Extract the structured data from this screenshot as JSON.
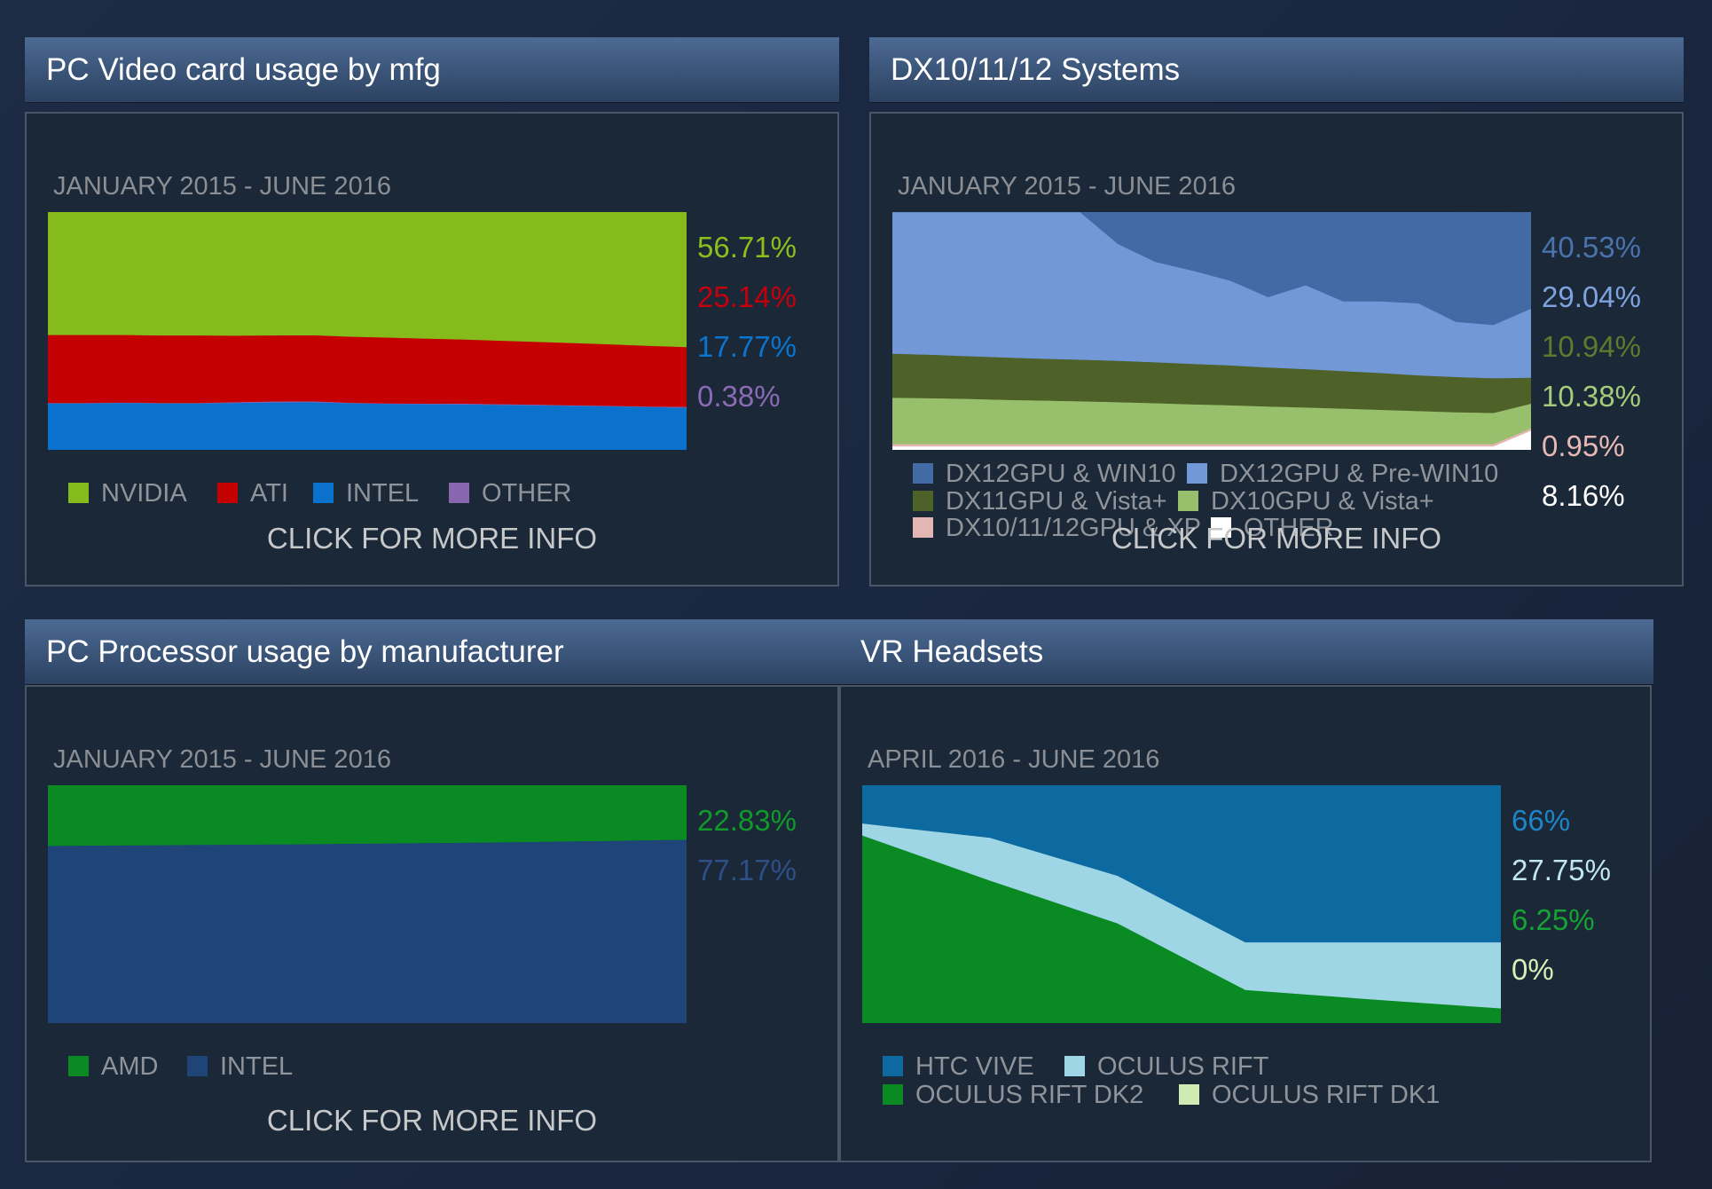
{
  "panels": {
    "gpu": {
      "title": "PC Video card usage by mfg",
      "date_range": "JANUARY 2015 - JUNE 2016",
      "percentages": [
        {
          "label": "56.71%",
          "color": "#8cbf1e"
        },
        {
          "label": "25.14%",
          "color": "#c5000c"
        },
        {
          "label": "17.77%",
          "color": "#0a74cf"
        },
        {
          "label": "0.38%",
          "color": "#8b6bb5"
        }
      ],
      "legend": [
        {
          "label": "NVIDIA",
          "color": "#85bb1a"
        },
        {
          "label": "ATI",
          "color": "#c40000"
        },
        {
          "label": "INTEL",
          "color": "#0a72cc"
        },
        {
          "label": "OTHER",
          "color": "#8967b0"
        }
      ],
      "more_info": "CLICK FOR MORE INFO"
    },
    "dx": {
      "title": "DX10/11/12 Systems",
      "date_range": "JANUARY 2015 - JUNE 2016",
      "percentages": [
        {
          "label": "40.53%",
          "color": "#4a73ad"
        },
        {
          "label": "29.04%",
          "color": "#7ea3de"
        },
        {
          "label": "10.94%",
          "color": "#5e7a2e"
        },
        {
          "label": "10.38%",
          "color": "#a4cc7a"
        },
        {
          "label": "0.95%",
          "color": "#e8b8b4"
        },
        {
          "label": "8.16%",
          "color": "#ffffff"
        }
      ],
      "legend": [
        {
          "label": "DX12GPU & WIN10",
          "color": "#426aa4"
        },
        {
          "label": "DX12GPU & Pre-WIN10",
          "color": "#7398d8"
        },
        {
          "label": "DX11GPU & Vista+",
          "color": "#4e6128"
        },
        {
          "label": "DX10GPU & Vista+",
          "color": "#98bf6c"
        },
        {
          "label": "DX10/11/12GPU & XP",
          "color": "#e2b6b2"
        },
        {
          "label": "OTHER",
          "color": "#ffffff"
        }
      ],
      "more_info": "CLICK FOR MORE INFO"
    },
    "cpu": {
      "title": "PC Processor usage by manufacturer",
      "date_range": "JANUARY 2015 - JUNE 2016",
      "percentages": [
        {
          "label": "22.83%",
          "color": "#0f9a2a"
        },
        {
          "label": "77.17%",
          "color": "#2d5089"
        }
      ],
      "legend": [
        {
          "label": "AMD",
          "color": "#0a8a22"
        },
        {
          "label": "INTEL",
          "color": "#1f4478"
        }
      ],
      "more_info": "CLICK FOR MORE INFO"
    },
    "vr": {
      "title": "VR Headsets",
      "date_range": "APRIL 2016 - JUNE 2016",
      "percentages": [
        {
          "label": "66%",
          "color": "#1c86c9"
        },
        {
          "label": "27.75%",
          "color": "#bfe6f2"
        },
        {
          "label": "6.25%",
          "color": "#15a333"
        },
        {
          "label": "0%",
          "color": "#d7f0b8"
        }
      ],
      "legend": [
        {
          "label": "HTC VIVE",
          "color": "#0d6aa0"
        },
        {
          "label": "OCULUS RIFT",
          "color": "#9fd6e6"
        },
        {
          "label": "OCULUS RIFT DK2",
          "color": "#0a8a22"
        },
        {
          "label": "OCULUS RIFT DK1",
          "color": "#cfeab2"
        }
      ],
      "more_info": ""
    }
  },
  "chart_data": [
    {
      "type": "area",
      "stacked": true,
      "title": "PC Video card usage by mfg",
      "x": [
        0,
        1,
        2,
        3,
        4,
        5,
        6,
        7,
        8,
        9,
        10,
        11,
        12,
        13,
        14,
        15,
        16,
        17
      ],
      "ylim": [
        0,
        100
      ],
      "series": [
        {
          "name": "INTEL",
          "color": "#0a72cc",
          "values": [
            19.6,
            19.6,
            19.8,
            19.6,
            19.6,
            19.8,
            20.0,
            20.1,
            19.7,
            19.4,
            19.3,
            19.2,
            19.0,
            18.8,
            18.6,
            18.4,
            18.1,
            17.77
          ]
        },
        {
          "name": "OTHER",
          "color": "#8967b0",
          "values": [
            0.2,
            0.2,
            0.2,
            0.2,
            0.2,
            0.3,
            0.4,
            0.4,
            0.2,
            0.2,
            0.2,
            0.3,
            0.3,
            0.3,
            0.2,
            0.2,
            0.2,
            0.38
          ]
        },
        {
          "name": "ATI",
          "color": "#c40000",
          "values": [
            28.6,
            28.6,
            28.4,
            28.4,
            28.4,
            28.0,
            27.8,
            27.8,
            27.8,
            27.7,
            27.4,
            27.0,
            26.7,
            26.4,
            26.2,
            25.8,
            25.5,
            25.14
          ]
        },
        {
          "name": "NVIDIA",
          "color": "#85bb1a",
          "values": [
            51.6,
            51.6,
            51.6,
            51.8,
            51.8,
            51.9,
            51.8,
            51.7,
            52.3,
            52.7,
            53.1,
            53.5,
            54.0,
            54.5,
            55.0,
            55.6,
            56.2,
            56.71
          ]
        }
      ]
    },
    {
      "type": "area",
      "stacked": true,
      "title": "DX10/11/12 Systems",
      "x": [
        0,
        1,
        2,
        3,
        4,
        5,
        6,
        7,
        8,
        9,
        10,
        11,
        12,
        13,
        14,
        15,
        16,
        17
      ],
      "ylim": [
        0,
        100
      ],
      "series": [
        {
          "name": "OTHER",
          "color": "#ffffff",
          "values": [
            1.5,
            1.5,
            1.5,
            1.5,
            1.5,
            1.5,
            1.5,
            1.5,
            1.5,
            1.5,
            1.5,
            1.5,
            1.5,
            1.5,
            1.5,
            1.5,
            1.5,
            8.16
          ]
        },
        {
          "name": "DX10/11/12GPU & XP",
          "color": "#e2b6b2",
          "values": [
            1.0,
            1.0,
            1.0,
            1.0,
            1.0,
            1.0,
            1.0,
            1.0,
            1.0,
            1.0,
            1.0,
            1.0,
            1.0,
            1.0,
            1.0,
            1.0,
            1.0,
            0.95
          ]
        },
        {
          "name": "DX10GPU & Vista+",
          "color": "#98bf6c",
          "values": [
            19.5,
            19.3,
            19.0,
            18.6,
            18.3,
            18.0,
            17.6,
            17.2,
            16.7,
            16.3,
            15.8,
            15.4,
            14.9,
            14.4,
            13.9,
            13.4,
            13.1,
            10.38
          ]
        },
        {
          "name": "DX11GPU & Vista+",
          "color": "#4e6128",
          "values": [
            18.5,
            18.3,
            18.0,
            17.8,
            17.6,
            17.5,
            17.4,
            17.2,
            17.0,
            16.8,
            16.4,
            16.1,
            15.8,
            15.5,
            15.0,
            14.8,
            14.6,
            10.94
          ]
        },
        {
          "name": "DX12GPU & Pre-WIN10",
          "color": "#7398d8",
          "values": [
            59.5,
            59.9,
            60.5,
            61.1,
            61.6,
            62.0,
            49.2,
            42.2,
            39.2,
            35.6,
            29.6,
            35.3,
            29.3,
            30.1,
            30.3,
            23.2,
            22.4,
            29.04
          ]
        },
        {
          "name": "DX12GPU & WIN10",
          "color": "#426aa4",
          "values": [
            0,
            0,
            0,
            0,
            0,
            0,
            13.3,
            20.9,
            24.6,
            28.8,
            35.7,
            30.7,
            37.5,
            37.5,
            38.3,
            46.1,
            47.3,
            40.53
          ]
        }
      ]
    },
    {
      "type": "area",
      "stacked": true,
      "title": "PC Processor usage by manufacturer",
      "x": [
        0,
        1,
        2,
        3,
        4,
        5,
        6,
        7,
        8,
        9,
        10,
        11,
        12,
        13,
        14,
        15,
        16,
        17
      ],
      "ylim": [
        0,
        100
      ],
      "series": [
        {
          "name": "INTEL",
          "color": "#1f4478",
          "values": [
            74.6,
            74.7,
            74.8,
            74.9,
            75.0,
            75.1,
            75.2,
            75.3,
            75.5,
            75.6,
            75.8,
            75.9,
            76.1,
            76.3,
            76.5,
            76.7,
            77.0,
            77.17
          ]
        },
        {
          "name": "AMD",
          "color": "#0a8a22",
          "values": [
            25.4,
            25.3,
            25.2,
            25.1,
            25.0,
            24.9,
            24.8,
            24.7,
            24.5,
            24.4,
            24.2,
            24.1,
            23.9,
            23.7,
            23.5,
            23.3,
            23.0,
            22.83
          ]
        }
      ]
    },
    {
      "type": "area",
      "stacked": true,
      "title": "VR Headsets",
      "x": [
        0,
        1,
        2,
        3,
        4,
        5
      ],
      "ylim": [
        0,
        100
      ],
      "series": [
        {
          "name": "OCULUS RIFT DK1",
          "color": "#cfeab2",
          "values": [
            0,
            0,
            0,
            0,
            0,
            0
          ]
        },
        {
          "name": "OCULUS RIFT DK2",
          "color": "#0a8a22",
          "values": [
            79,
            60,
            42,
            14,
            10,
            6.25
          ]
        },
        {
          "name": "OCULUS RIFT",
          "color": "#9fd6e6",
          "values": [
            5,
            18,
            20,
            20,
            24,
            27.75
          ]
        },
        {
          "name": "HTC VIVE",
          "color": "#0d6aa0",
          "values": [
            16,
            22,
            38,
            66,
            66,
            66
          ]
        }
      ]
    }
  ]
}
